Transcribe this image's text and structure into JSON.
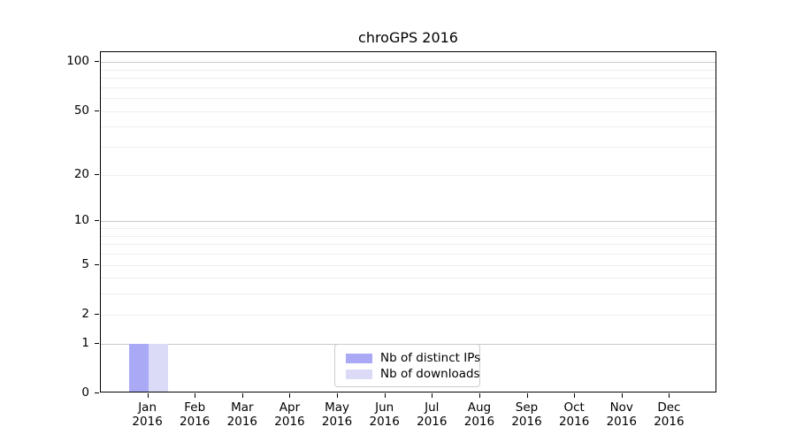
{
  "chart_data": {
    "type": "bar",
    "title": "chroGPS 2016",
    "x_axis": {
      "categories": [
        "Jan",
        "Feb",
        "Mar",
        "Apr",
        "May",
        "Jun",
        "Jul",
        "Aug",
        "Sep",
        "Oct",
        "Nov",
        "Dec"
      ],
      "year_label": "2016"
    },
    "y_axis": {
      "scale": "log1p",
      "ticks": [
        0,
        1,
        2,
        5,
        10,
        20,
        50,
        100
      ],
      "major_gridlines": [
        1,
        10,
        100
      ],
      "minor_gridlines": [
        2,
        3,
        4,
        6,
        7,
        8,
        9,
        20,
        30,
        40,
        50,
        60,
        70,
        80,
        90
      ],
      "extra_faint_gridlines": [
        5
      ],
      "ylim": [
        0,
        115
      ]
    },
    "series": [
      {
        "name": "Nb of distinct IPs",
        "color": "#a9a9f6",
        "values": [
          1,
          0,
          0,
          0,
          0,
          0,
          0,
          0,
          0,
          0,
          0,
          0
        ]
      },
      {
        "name": "Nb of downloads",
        "color": "#dbdbf8",
        "values": [
          1,
          0,
          0,
          0,
          0,
          0,
          0,
          0,
          0,
          0,
          0,
          0
        ]
      }
    ],
    "legend": {
      "position": "bottom-center",
      "entries": [
        "Nb of distinct IPs",
        "Nb of downloads"
      ]
    }
  },
  "colors": {
    "background": "#ffffff",
    "spine": "#000000",
    "grid_major": "#c9c9c9",
    "grid_minor": "#efefef",
    "text": "#000000",
    "legend_border": "#cccccc",
    "legend_background": "#ffffff"
  }
}
